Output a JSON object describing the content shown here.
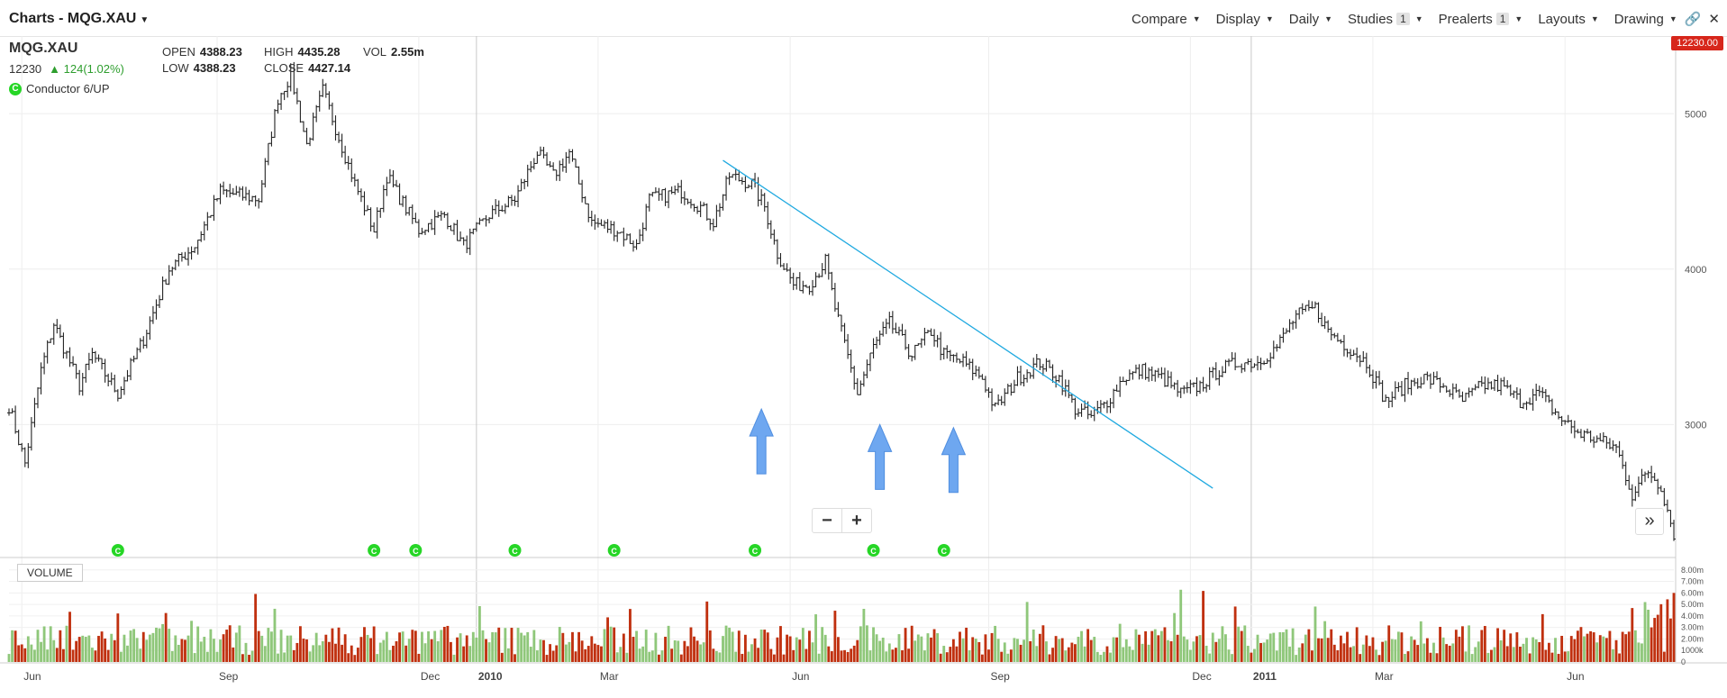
{
  "header": {
    "title": "Charts - MQG.XAU",
    "menu": [
      {
        "label": "Compare",
        "badge": ""
      },
      {
        "label": "Display",
        "badge": ""
      },
      {
        "label": "Daily",
        "badge": ""
      },
      {
        "label": "Studies",
        "badge": "1"
      },
      {
        "label": "Prealerts",
        "badge": "1"
      },
      {
        "label": "Layouts",
        "badge": ""
      },
      {
        "label": "Drawing",
        "badge": ""
      }
    ],
    "icons": [
      "link-icon",
      "close-icon"
    ]
  },
  "info": {
    "symbol": "MQG.XAU",
    "last": "12230",
    "change": "124(1.02%)",
    "change_icon": "triangle-up-icon",
    "open_label": "OPEN",
    "open": "4388.23",
    "high_label": "HIGH",
    "high": "4435.28",
    "vol_label": "VOL",
    "vol": "2.55m",
    "low_label": "LOW",
    "low": "4388.23",
    "close_label": "CLOSE",
    "close": "4427.14",
    "signal_badge": "C",
    "conductor": "Conductor 6/UP"
  },
  "price_tag": "12230.00",
  "volume_label": "VOLUME",
  "controls": {
    "zoom_out": "−",
    "zoom_in": "+",
    "expand": "»"
  },
  "chart_data": {
    "type": "ohlc",
    "x_ticks": [
      {
        "label": "Jun",
        "i": 4
      },
      {
        "label": "Sep",
        "i": 65
      },
      {
        "label": "Dec",
        "i": 128
      },
      {
        "label": "2010",
        "i": 146
      },
      {
        "label": "Mar",
        "i": 184
      },
      {
        "label": "Jun",
        "i": 244
      },
      {
        "label": "Sep",
        "i": 306
      },
      {
        "label": "Dec",
        "i": 369
      },
      {
        "label": "2011",
        "i": 388
      },
      {
        "label": "Mar",
        "i": 426
      },
      {
        "label": "Jun",
        "i": 486
      }
    ],
    "price_axis": {
      "ticks": [
        3000,
        4000,
        5000
      ],
      "ylim": [
        2150,
        5500
      ]
    },
    "volume_axis": {
      "ticks": [
        "0",
        "1000k",
        "2.00m",
        "3.00m",
        "4.00m",
        "5.00m",
        "6.00m",
        "7.00m",
        "8.00m"
      ],
      "ylim": [
        0,
        9
      ]
    },
    "price_anchors": [
      [
        0,
        3120
      ],
      [
        5,
        2750
      ],
      [
        10,
        3350
      ],
      [
        14,
        3650
      ],
      [
        22,
        3250
      ],
      [
        26,
        3450
      ],
      [
        34,
        3200
      ],
      [
        42,
        3550
      ],
      [
        50,
        4000
      ],
      [
        58,
        4150
      ],
      [
        66,
        4500
      ],
      [
        78,
        4450
      ],
      [
        84,
        5100
      ],
      [
        88,
        5250
      ],
      [
        93,
        4800
      ],
      [
        98,
        5150
      ],
      [
        108,
        4550
      ],
      [
        114,
        4250
      ],
      [
        118,
        4600
      ],
      [
        128,
        4250
      ],
      [
        136,
        4350
      ],
      [
        142,
        4150
      ],
      [
        150,
        4350
      ],
      [
        158,
        4450
      ],
      [
        165,
        4750
      ],
      [
        170,
        4600
      ],
      [
        175,
        4750
      ],
      [
        178,
        4550
      ],
      [
        182,
        4300
      ],
      [
        190,
        4250
      ],
      [
        196,
        4150
      ],
      [
        200,
        4450
      ],
      [
        210,
        4500
      ],
      [
        216,
        4400
      ],
      [
        220,
        4300
      ],
      [
        225,
        4600
      ],
      [
        232,
        4550
      ],
      [
        236,
        4400
      ],
      [
        240,
        4100
      ],
      [
        245,
        3900
      ],
      [
        250,
        3900
      ],
      [
        255,
        4050
      ],
      [
        258,
        3750
      ],
      [
        265,
        3200
      ],
      [
        270,
        3500
      ],
      [
        275,
        3650
      ],
      [
        282,
        3450
      ],
      [
        288,
        3600
      ],
      [
        292,
        3450
      ],
      [
        298,
        3400
      ],
      [
        304,
        3300
      ],
      [
        308,
        3100
      ],
      [
        315,
        3300
      ],
      [
        322,
        3400
      ],
      [
        328,
        3300
      ],
      [
        333,
        3100
      ],
      [
        338,
        3050
      ],
      [
        343,
        3150
      ],
      [
        348,
        3300
      ],
      [
        354,
        3350
      ],
      [
        360,
        3300
      ],
      [
        366,
        3200
      ],
      [
        372,
        3250
      ],
      [
        378,
        3350
      ],
      [
        384,
        3400
      ],
      [
        390,
        3400
      ],
      [
        396,
        3500
      ],
      [
        402,
        3700
      ],
      [
        408,
        3750
      ],
      [
        412,
        3600
      ],
      [
        418,
        3500
      ],
      [
        424,
        3400
      ],
      [
        430,
        3150
      ],
      [
        436,
        3250
      ],
      [
        442,
        3300
      ],
      [
        448,
        3250
      ],
      [
        454,
        3150
      ],
      [
        460,
        3250
      ],
      [
        466,
        3250
      ],
      [
        472,
        3150
      ],
      [
        478,
        3200
      ],
      [
        484,
        3050
      ],
      [
        490,
        2950
      ],
      [
        496,
        2900
      ],
      [
        502,
        2850
      ],
      [
        507,
        2550
      ],
      [
        512,
        2700
      ],
      [
        516,
        2600
      ],
      [
        520,
        2300
      ]
    ],
    "trend_line": {
      "from": {
        "i": 223,
        "price": 4700
      },
      "to": {
        "i": 376,
        "price": 2590
      }
    },
    "signal_markers": [
      34,
      114,
      127,
      158,
      189,
      233,
      270,
      292
    ],
    "arrows": [
      {
        "i": 235,
        "price_top": 3100
      },
      {
        "i": 272,
        "price_top": 3000
      },
      {
        "i": 295,
        "price_top": 2980
      }
    ],
    "colors": {
      "bar": "#222222",
      "up_volume": "#8fc77a",
      "down_volume": "#c0300f",
      "trend_line": "#1fa9e0",
      "arrow": "#6ea7f0",
      "signal": "#26d626",
      "grid": "#eeeeee"
    }
  }
}
